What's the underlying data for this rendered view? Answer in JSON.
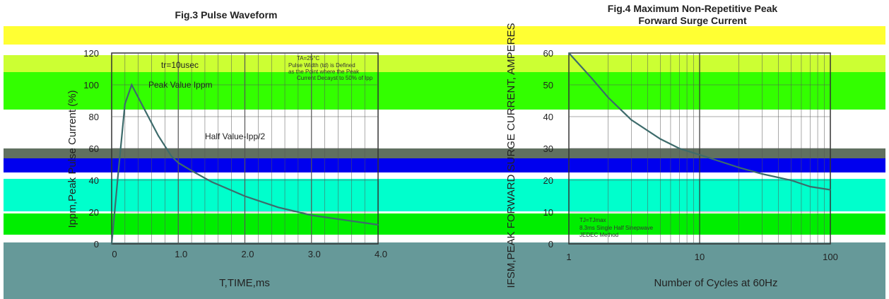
{
  "band_colors": {
    "yellow": "#ffff33",
    "lime_light": "#ccff33",
    "green": "#33ff00",
    "gray": "#607060",
    "blue": "#0000ee",
    "teal": "#00ffcc",
    "green2": "#00ee00",
    "slate": "#669999"
  },
  "chart_data": [
    {
      "type": "line",
      "title": "Fig.3 Pulse Waveform",
      "xlabel": "T,TIME,ms",
      "ylabel": "Ippm,Peak Pulse Current (%)",
      "xlim": [
        0,
        4.0
      ],
      "ylim": [
        0,
        120
      ],
      "x_ticks": [
        "0",
        "1.0",
        "2.0",
        "3.0",
        "4.0"
      ],
      "y_ticks": [
        "0",
        "20",
        "40",
        "60",
        "80",
        "100",
        "120"
      ],
      "series": [
        {
          "x": [
            0,
            0.1,
            0.2,
            0.3,
            0.5,
            0.7,
            0.9,
            1.0,
            1.2,
            1.5,
            2.0,
            2.5,
            3.0,
            3.5,
            4.0
          ],
          "values": [
            0,
            45,
            88,
            100,
            84,
            68,
            55,
            51,
            46,
            39,
            30,
            23,
            18,
            15,
            12
          ]
        }
      ],
      "annotations": {
        "tr": "tr=10usec",
        "peak": "Peak Value Ippm",
        "half": "Half Value-Ipp/2",
        "ta": "TA=25°C",
        "note1": "Pulse Width (td) is Defined",
        "note2": "as the Point where the Peak",
        "note3": "Current Decayst to 50% of Ipp"
      },
      "grid": true
    },
    {
      "type": "line",
      "title": "Fig.4 Maximum Non-Repetitive Peak",
      "title2": "Forward Surge Current",
      "xlabel": "Number of Cycles at 60Hz",
      "ylabel": "IFSM,PEAK FORWARD SURGE CURRENT, AMPERES",
      "x_scale": "log",
      "xlim": [
        1,
        100
      ],
      "ylim": [
        0,
        60
      ],
      "x_ticks": [
        "1",
        "10",
        "100"
      ],
      "y_ticks": [
        "0",
        "10",
        "20",
        "30",
        "40",
        "50",
        "60"
      ],
      "series": [
        {
          "x": [
            1,
            1.5,
            2,
            3,
            5,
            7,
            10,
            20,
            30,
            50,
            70,
            100
          ],
          "values": [
            60,
            52,
            46,
            39,
            33,
            30,
            28,
            24,
            22,
            20,
            18,
            17
          ]
        }
      ],
      "annotations": {
        "tj": "TJ=TJmax",
        "note1": "8.3ms Single Half Sinepwave",
        "note2": "JEDEC Method"
      },
      "grid": true
    }
  ]
}
